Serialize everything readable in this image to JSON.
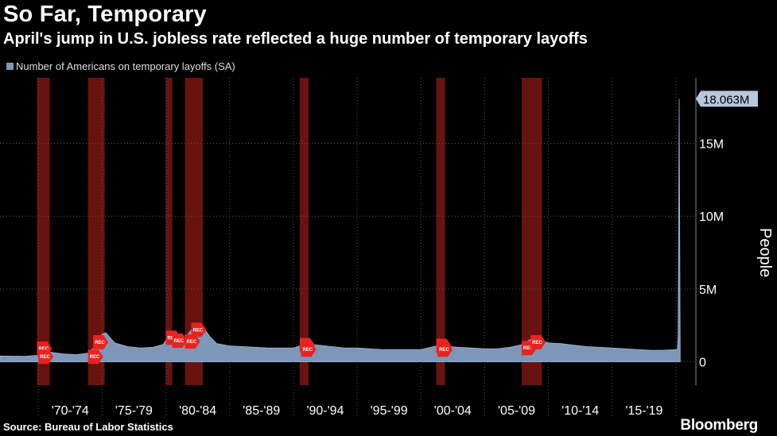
{
  "header": {
    "title": "So Far, Temporary",
    "subtitle": "April's jump in U.S. jobless rate reflected a huge number of temporary layoffs"
  },
  "footer": {
    "source": "Source: Bureau of Labor Statistics",
    "brand": "Bloomberg"
  },
  "colors": {
    "background": "#000000",
    "series": "#7e96b8",
    "recession": "#6e1410",
    "marker": "#e8231f",
    "grid": "#555555"
  },
  "chart_data": {
    "type": "area",
    "title": "So Far, Temporary",
    "ylabel": "People",
    "xlabel": "",
    "ylim": [
      -1.6,
      19.5
    ],
    "xlim": [
      1967.0,
      2020.5
    ],
    "yticks": [
      0,
      5,
      10,
      15
    ],
    "ytick_labels": [
      "0",
      "5M",
      "10M",
      "15M"
    ],
    "xtick_labels": [
      "'70-'74",
      "'75-'79",
      "'80-'84",
      "'85-'89",
      "'90-'94",
      "'95-'99",
      "'00-'04",
      "'05-'09",
      "'10-'14",
      "'15-'19"
    ],
    "xtick_starts": [
      1970,
      1975,
      1980,
      1985,
      1990,
      1995,
      2000,
      2005,
      2010,
      2015
    ],
    "legend": "Number of Americans on temporary layoffs (SA)",
    "last_value_label": "18.063M",
    "last_value": 18.063,
    "marker_text": "REC",
    "recessions": [
      [
        1969.9,
        1970.9
      ],
      [
        1973.9,
        1975.2
      ],
      [
        1980.0,
        1980.5
      ],
      [
        1981.5,
        1982.9
      ],
      [
        1990.5,
        1991.2
      ],
      [
        2001.2,
        2001.9
      ],
      [
        2007.9,
        2009.5
      ]
    ],
    "series": [
      {
        "name": "Number of Americans on temporary layoffs (SA)",
        "x": [
          1967.0,
          1969.0,
          1969.9,
          1970.5,
          1971.0,
          1972.0,
          1973.0,
          1973.9,
          1974.5,
          1975.0,
          1975.3,
          1976.0,
          1977.0,
          1978.0,
          1979.0,
          1979.8,
          1980.3,
          1980.6,
          1981.0,
          1981.5,
          1982.0,
          1982.5,
          1982.9,
          1983.5,
          1984.0,
          1985.0,
          1986.0,
          1987.0,
          1988.0,
          1989.0,
          1990.0,
          1990.5,
          1991.0,
          1991.5,
          1992.0,
          1993.0,
          1994.0,
          1995.0,
          1996.0,
          1997.0,
          1998.0,
          1999.0,
          2000.0,
          2001.0,
          2001.5,
          2002.0,
          2003.0,
          2004.0,
          2005.0,
          2006.0,
          2007.0,
          2008.0,
          2008.5,
          2009.0,
          2009.5,
          2010.0,
          2011.0,
          2012.0,
          2013.0,
          2014.0,
          2015.0,
          2016.0,
          2017.0,
          2018.0,
          2019.0,
          2020.0,
          2020.1,
          2020.17,
          2020.25,
          2020.33
        ],
        "values": [
          0.4,
          0.38,
          0.45,
          0.7,
          0.65,
          0.55,
          0.5,
          0.6,
          1.1,
          1.9,
          2.0,
          1.3,
          1.05,
          0.95,
          1.0,
          1.2,
          1.9,
          1.5,
          1.4,
          1.6,
          2.2,
          2.5,
          2.4,
          1.7,
          1.25,
          1.1,
          1.05,
          1.0,
          0.95,
          0.95,
          0.95,
          1.1,
          1.3,
          1.2,
          1.15,
          1.05,
          0.95,
          0.95,
          0.9,
          0.85,
          0.85,
          0.85,
          0.85,
          1.05,
          1.15,
          1.05,
          1.0,
          0.95,
          0.9,
          0.9,
          1.0,
          1.2,
          1.5,
          1.7,
          1.45,
          1.3,
          1.25,
          1.15,
          1.05,
          1.0,
          0.95,
          0.9,
          0.85,
          0.8,
          0.8,
          0.85,
          0.8,
          1.8,
          18.063,
          0.6
        ]
      }
    ],
    "markers": [
      {
        "x": 1969.9,
        "value": 0.9
      },
      {
        "x": 1970.0,
        "value": 0.35
      },
      {
        "x": 1973.9,
        "value": 0.35
      },
      {
        "x": 1974.3,
        "value": 1.35
      },
      {
        "x": 1980.0,
        "value": 1.65
      },
      {
        "x": 1980.5,
        "value": 1.45
      },
      {
        "x": 1981.5,
        "value": 1.4
      },
      {
        "x": 1982.0,
        "value": 2.2
      },
      {
        "x": 1990.5,
        "value": 1.15
      },
      {
        "x": 1990.6,
        "value": 0.85
      },
      {
        "x": 2001.2,
        "value": 1.1
      },
      {
        "x": 2001.3,
        "value": 0.85
      },
      {
        "x": 2007.9,
        "value": 0.95
      },
      {
        "x": 2008.6,
        "value": 1.35
      }
    ]
  }
}
